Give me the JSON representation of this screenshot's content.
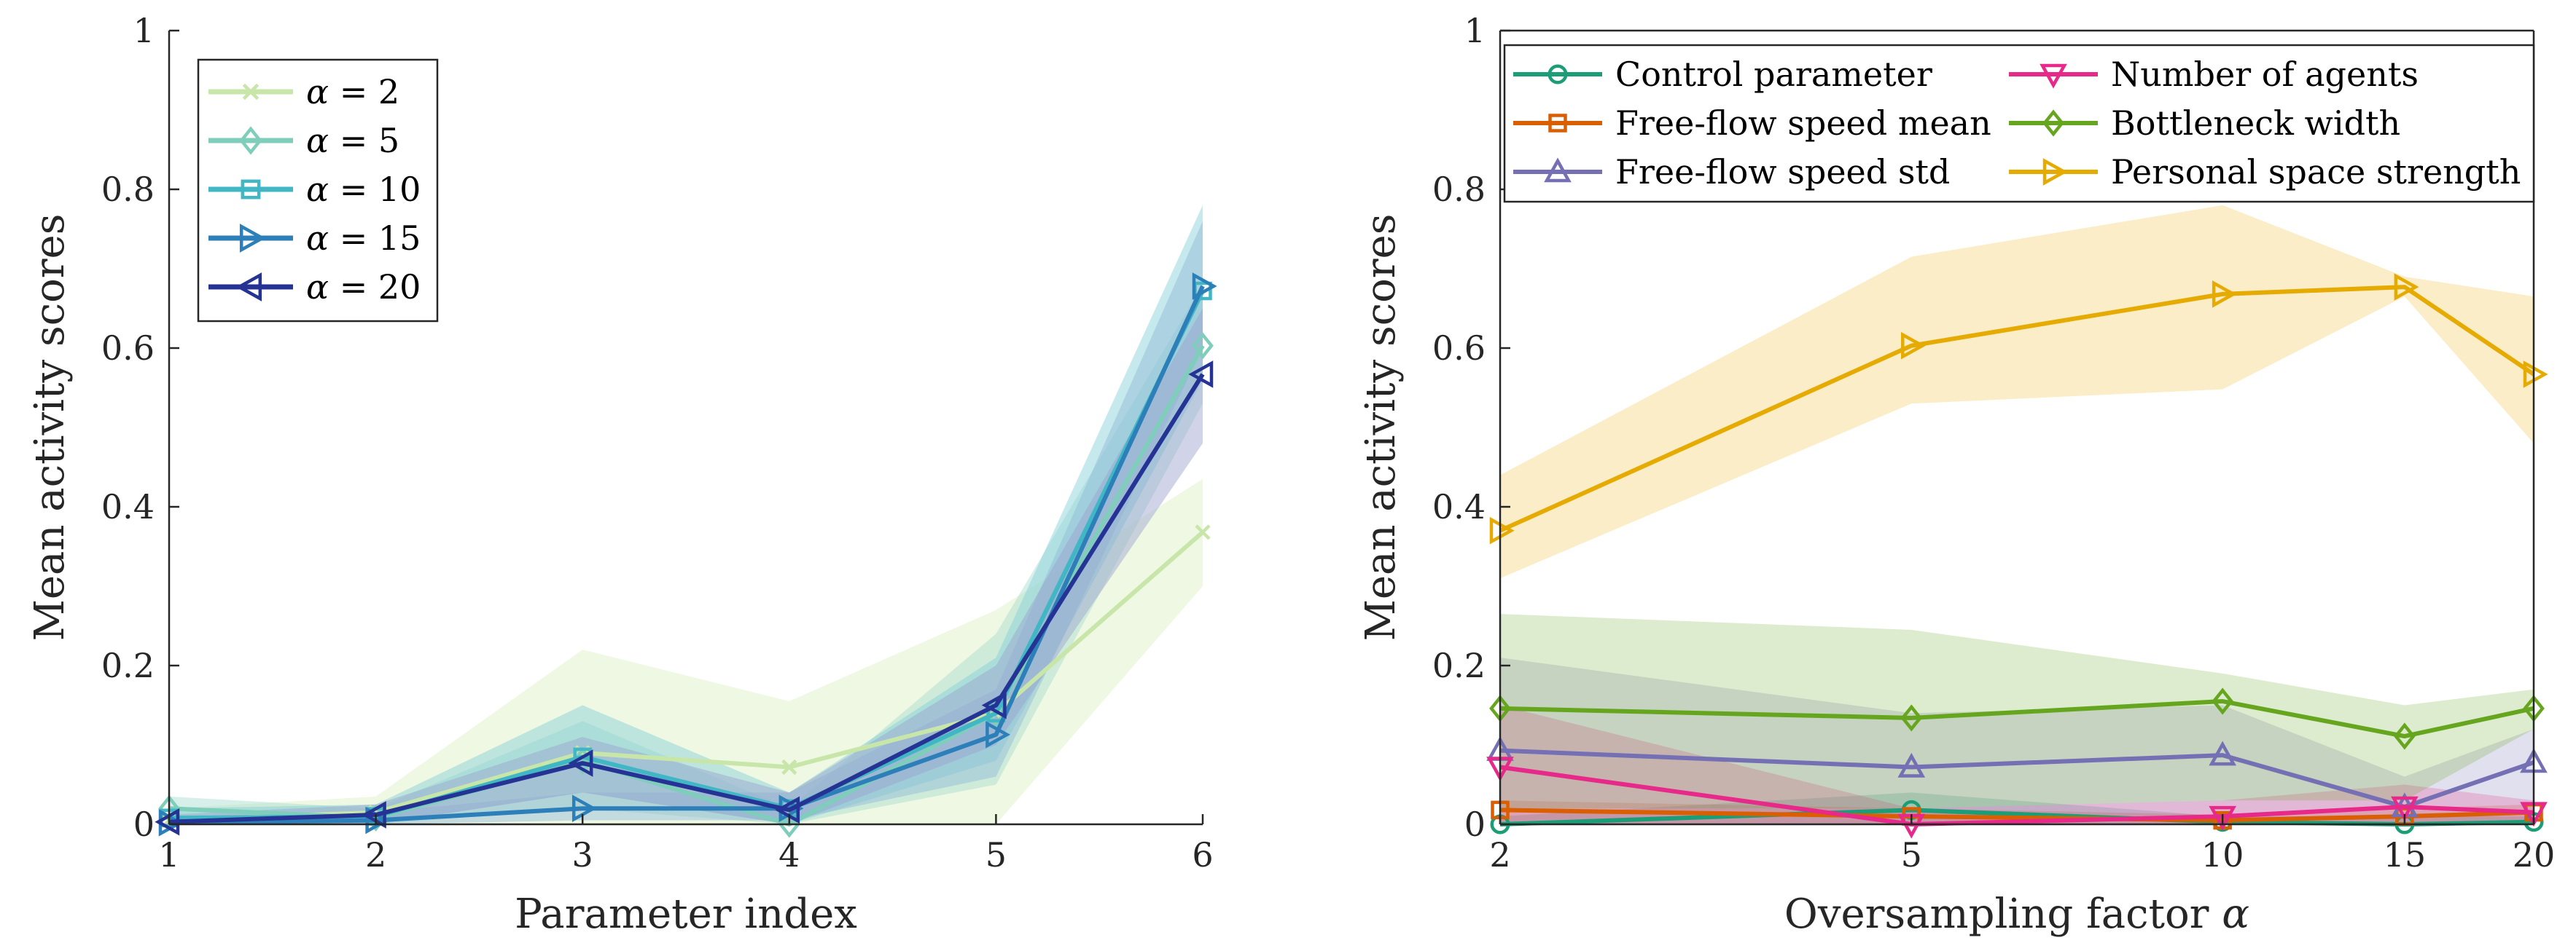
{
  "chart_data": [
    {
      "type": "line",
      "xlabel": "Parameter index",
      "ylabel": "Mean activity scores",
      "xlim": [
        1,
        6
      ],
      "ylim": [
        0,
        1
      ],
      "x_ticks": [
        "1",
        "2",
        "3",
        "4",
        "5",
        "6"
      ],
      "y_ticks": [
        "0",
        "0.2",
        "0.4",
        "0.6",
        "0.8",
        "1"
      ],
      "legend_position": "top-left",
      "x": [
        1,
        2,
        3,
        4,
        5,
        6
      ],
      "series": [
        {
          "name": "α = 2",
          "symbol": "α",
          "label_suffix": " = 2",
          "color": "#c8e6a9",
          "band_color": "#d9f0c2",
          "marker": "x",
          "values": [
            0.005,
            0.015,
            0.09,
            0.072,
            0.14,
            0.368
          ],
          "lower": [
            0.0,
            0.0,
            0.0,
            0.0,
            0.0,
            0.3
          ],
          "upper": [
            0.02,
            0.035,
            0.22,
            0.155,
            0.27,
            0.435
          ]
        },
        {
          "name": "α = 5",
          "symbol": "α",
          "label_suffix": " = 5",
          "color": "#7fcdbb",
          "band_color": "#a6dccf",
          "marker": "diamond",
          "values": [
            0.02,
            0.008,
            0.08,
            0.0,
            0.14,
            0.603
          ],
          "lower": [
            0.0,
            0.0,
            0.02,
            0.0,
            0.05,
            0.53
          ],
          "upper": [
            0.035,
            0.02,
            0.13,
            0.02,
            0.24,
            0.68
          ]
        },
        {
          "name": "α = 10",
          "symbol": "α",
          "label_suffix": " = 10",
          "color": "#41b6c4",
          "band_color": "#80cfd8",
          "marker": "square",
          "values": [
            0.008,
            0.01,
            0.085,
            0.02,
            0.14,
            0.672
          ],
          "lower": [
            0.0,
            0.0,
            0.04,
            0.0,
            0.08,
            0.56
          ],
          "upper": [
            0.02,
            0.025,
            0.15,
            0.04,
            0.21,
            0.78
          ]
        },
        {
          "name": "α = 15",
          "symbol": "α",
          "label_suffix": " = 15",
          "color": "#2c7fb8",
          "band_color": "#8db8d6",
          "marker": "triangle-right",
          "values": [
            0.002,
            0.005,
            0.02,
            0.02,
            0.113,
            0.678
          ],
          "lower": [
            0.0,
            0.0,
            0.005,
            0.005,
            0.06,
            0.6
          ],
          "upper": [
            0.01,
            0.015,
            0.04,
            0.04,
            0.17,
            0.76
          ]
        },
        {
          "name": "α = 20",
          "symbol": "α",
          "label_suffix": " = 20",
          "color": "#253494",
          "band_color": "#9a9fcf",
          "marker": "triangle-left",
          "values": [
            0.003,
            0.012,
            0.077,
            0.018,
            0.15,
            0.567
          ],
          "lower": [
            0.0,
            0.0,
            0.04,
            0.0,
            0.1,
            0.48
          ],
          "upper": [
            0.012,
            0.025,
            0.11,
            0.04,
            0.2,
            0.65
          ]
        }
      ]
    },
    {
      "type": "line",
      "xlabel": "Oversampling factor",
      "xlabel_symbol": "α",
      "ylabel": "Mean activity scores",
      "xscale": "log",
      "xlim": [
        2,
        20
      ],
      "ylim": [
        0,
        1
      ],
      "x_ticks": [
        "2",
        "5",
        "10",
        "15",
        "20"
      ],
      "y_ticks": [
        "0",
        "0.2",
        "0.4",
        "0.6",
        "0.8",
        "1"
      ],
      "legend_position": "top",
      "x": [
        2,
        5,
        10,
        15,
        20
      ],
      "series": [
        {
          "name": "Control parameter",
          "color": "#1b9e77",
          "marker": "circle",
          "values": [
            0.0,
            0.018,
            0.003,
            0.0,
            0.003
          ],
          "lower": [
            0.0,
            0.0,
            0.0,
            0.0,
            0.0
          ],
          "upper": [
            0.01,
            0.04,
            0.01,
            0.01,
            0.01
          ]
        },
        {
          "name": "Free-flow speed mean",
          "color": "#d95f02",
          "marker": "square",
          "values": [
            0.018,
            0.01,
            0.005,
            0.01,
            0.015
          ],
          "lower": [
            0.0,
            0.0,
            0.0,
            0.0,
            0.0
          ],
          "upper": [
            0.03,
            0.02,
            0.012,
            0.02,
            0.025
          ]
        },
        {
          "name": "Free-flow speed std",
          "color": "#7570b3",
          "marker": "triangle-up",
          "values": [
            0.093,
            0.072,
            0.087,
            0.022,
            0.078
          ],
          "lower": [
            0.0,
            0.0,
            0.0,
            0.0,
            0.0
          ],
          "upper": [
            0.21,
            0.14,
            0.15,
            0.06,
            0.12
          ]
        },
        {
          "name": "Number of agents",
          "color": "#e7298a",
          "marker": "triangle-down",
          "values": [
            0.072,
            0.0,
            0.01,
            0.022,
            0.015
          ],
          "lower": [
            0.0,
            0.0,
            0.0,
            0.0,
            0.0
          ],
          "upper": [
            0.15,
            0.02,
            0.03,
            0.05,
            0.03
          ]
        },
        {
          "name": "Bottleneck width",
          "color": "#66a61e",
          "marker": "diamond",
          "values": [
            0.146,
            0.134,
            0.155,
            0.111,
            0.146
          ],
          "lower": [
            0.02,
            0.02,
            0.03,
            0.03,
            0.12
          ],
          "upper": [
            0.265,
            0.245,
            0.19,
            0.15,
            0.17
          ]
        },
        {
          "name": "Personal space strength",
          "color": "#e6ab02",
          "marker": "triangle-right",
          "values": [
            0.37,
            0.603,
            0.668,
            0.677,
            0.567
          ],
          "lower": [
            0.31,
            0.53,
            0.548,
            0.665,
            0.48
          ],
          "upper": [
            0.44,
            0.715,
            0.78,
            0.69,
            0.665
          ]
        }
      ]
    }
  ]
}
